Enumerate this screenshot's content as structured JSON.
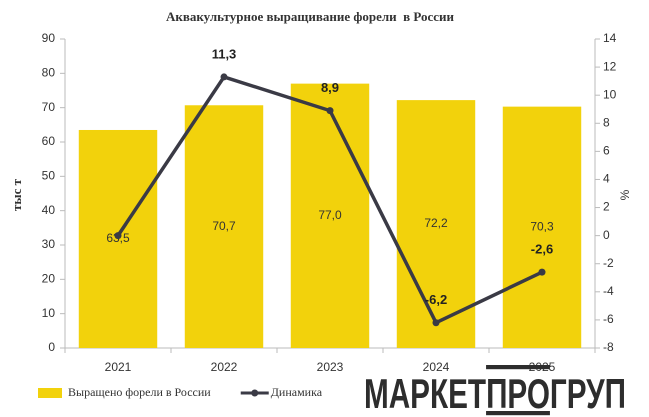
{
  "chart_data": {
    "type": "combo",
    "title": "Аквакультурное выращивание форели  в России",
    "categories": [
      "2021",
      "2022",
      "2023",
      "2024",
      "2025"
    ],
    "y_label": "тыс т",
    "y2_label": "%",
    "ylim": [
      0,
      90
    ],
    "yticks": [
      0,
      10,
      20,
      30,
      40,
      50,
      60,
      70,
      80,
      90
    ],
    "y2lim": [
      -8,
      14
    ],
    "y2ticks": [
      -8,
      -6,
      -4,
      -2,
      0,
      2,
      4,
      6,
      8,
      10,
      12,
      14
    ],
    "grid": false,
    "legend": "bottom-left",
    "series": [
      {
        "name": "Выращено форели в России",
        "type": "bar",
        "color": "#f2d20c",
        "values": [
          63.5,
          70.7,
          77.0,
          72.2,
          70.3
        ],
        "value_labels": [
          "63,5",
          "70,7",
          "77,0",
          "72,2",
          "70,3"
        ]
      },
      {
        "name": "Динамика",
        "type": "line",
        "axis": "y2",
        "color": "#3a3a45",
        "values": [
          0,
          11.3,
          8.9,
          -6.2,
          -2.6
        ],
        "value_labels": [
          null,
          "11,3",
          "8,9",
          "-6,2",
          "-2,6"
        ]
      }
    ],
    "logo": [
      "МАРКЕТ",
      "ПРО",
      "ГРУП"
    ]
  }
}
